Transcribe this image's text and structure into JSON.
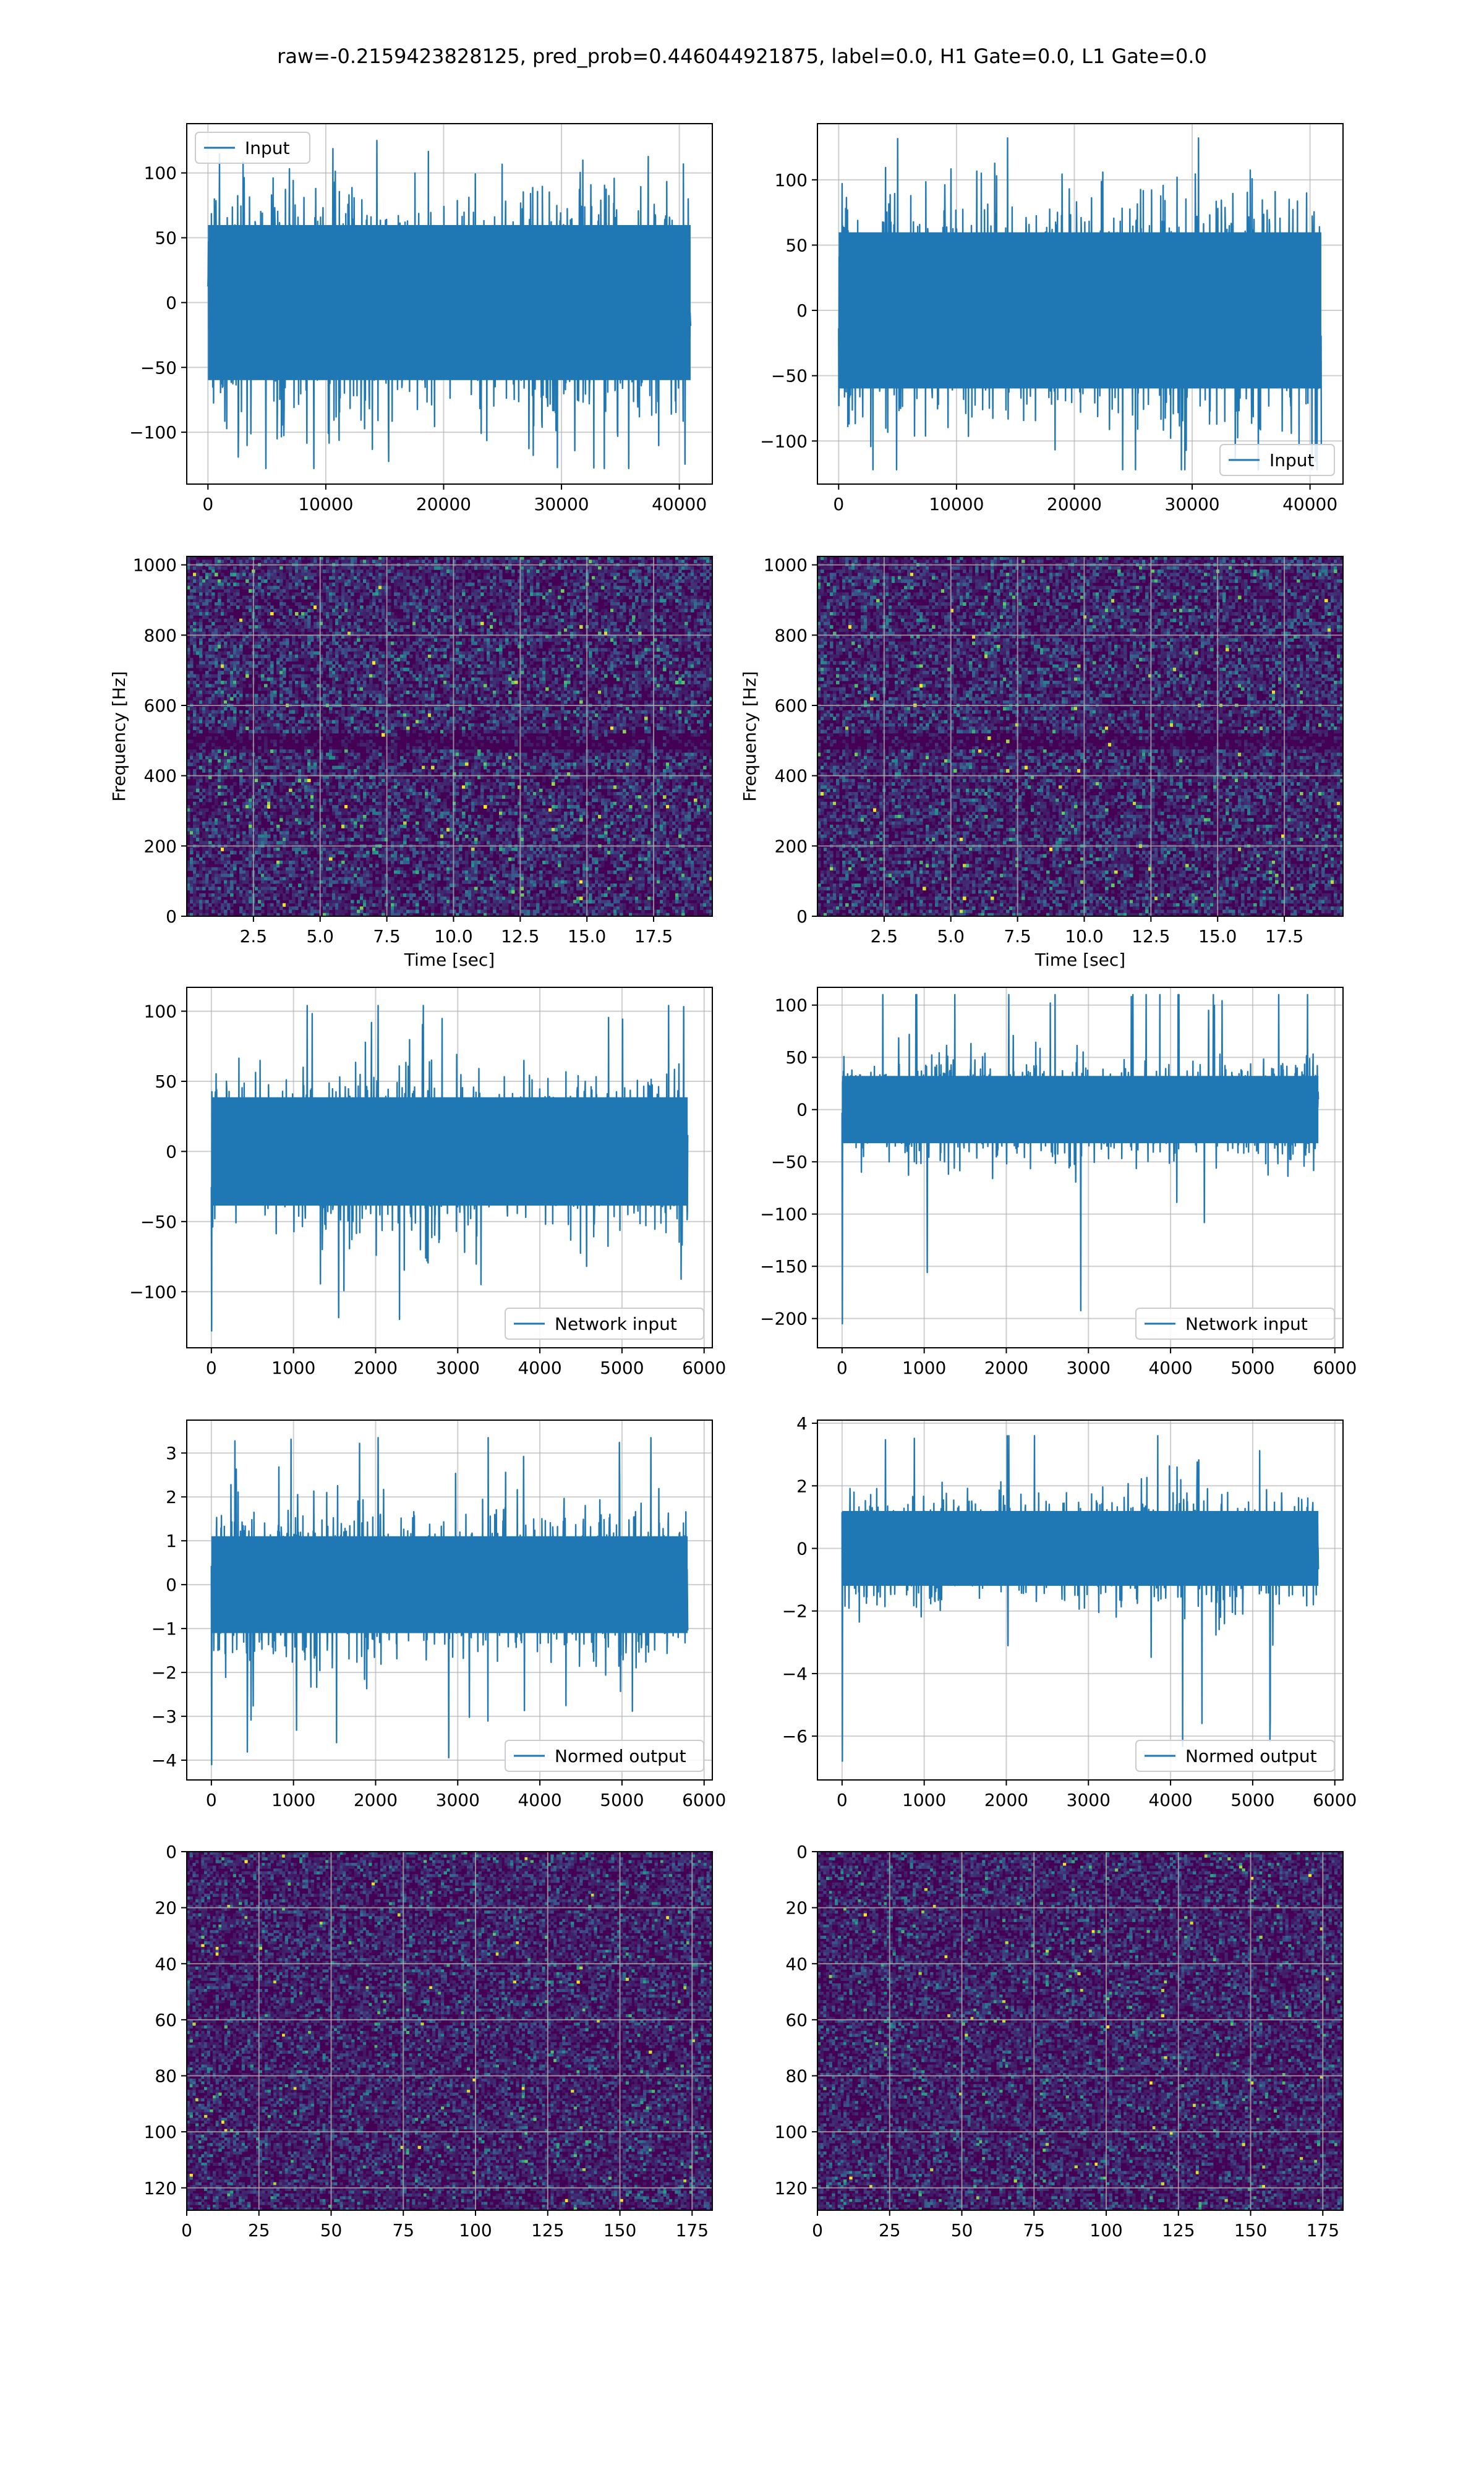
{
  "suptitle": "raw=-0.2159423828125, pred_prob=0.446044921875, label=0.0, H1 Gate=0.0, L1 Gate=0.0",
  "colors": {
    "line": "#1f77b4",
    "grid": "#b0b0b0",
    "viridis_dark": "#440154",
    "viridis_mid": "#21918c",
    "viridis_bright": "#fde725"
  },
  "chart_data": [
    {
      "id": "h1-input",
      "type": "line",
      "x": [
        0,
        40960
      ],
      "xlim": [
        -1800,
        42800
      ],
      "ylim": [
        -140,
        138
      ],
      "xticks": [
        0,
        10000,
        20000,
        30000,
        40000
      ],
      "yticks": [
        -100,
        -50,
        0,
        50,
        100
      ],
      "series": [
        {
          "name": "Input",
          "amplitude_core": 65,
          "peak_max": 125,
          "peak_min": -128
        }
      ],
      "legend": "upper left",
      "grid": true
    },
    {
      "id": "l1-input",
      "type": "line",
      "x": [
        0,
        40960
      ],
      "xlim": [
        -1800,
        42800
      ],
      "ylim": [
        -133,
        143
      ],
      "xticks": [
        0,
        10000,
        20000,
        30000,
        40000
      ],
      "yticks": [
        -100,
        -50,
        0,
        50,
        100
      ],
      "series": [
        {
          "name": "Input",
          "amplitude_core": 65,
          "peak_max": 132,
          "peak_min": -122
        }
      ],
      "legend": "lower right",
      "grid": true
    },
    {
      "id": "h1-spectrogram",
      "type": "heatmap",
      "xlim": [
        0,
        19.7
      ],
      "ylim": [
        0,
        1024
      ],
      "xticks": [
        2.5,
        5.0,
        7.5,
        10.0,
        12.5,
        15.0,
        17.5
      ],
      "yticks": [
        0,
        200,
        400,
        600,
        800,
        1000
      ],
      "xlabel": "Time [sec]",
      "ylabel": "Frequency [Hz]",
      "colormap": "viridis",
      "dark_band_hz": [
        475,
        520
      ],
      "grid": true
    },
    {
      "id": "l1-spectrogram",
      "type": "heatmap",
      "xlim": [
        0,
        19.7
      ],
      "ylim": [
        0,
        1024
      ],
      "xticks": [
        2.5,
        5.0,
        7.5,
        10.0,
        12.5,
        15.0,
        17.5
      ],
      "yticks": [
        0,
        200,
        400,
        600,
        800,
        1000
      ],
      "xlabel": "Time [sec]",
      "ylabel": "Frequency [Hz]",
      "colormap": "viridis",
      "dark_band_hz": [
        475,
        520
      ],
      "grid": true
    },
    {
      "id": "h1-network-input",
      "type": "line",
      "x": [
        0,
        5800
      ],
      "xlim": [
        -300,
        6100
      ],
      "ylim": [
        -140,
        117
      ],
      "xticks": [
        0,
        1000,
        2000,
        3000,
        4000,
        5000,
        6000
      ],
      "yticks": [
        -100,
        -50,
        0,
        50,
        100
      ],
      "series": [
        {
          "name": "Network input",
          "amplitude_core": 42,
          "peak_max": 104,
          "peak_min": -128
        }
      ],
      "legend": "lower right",
      "grid": true
    },
    {
      "id": "l1-network-input",
      "type": "line",
      "x": [
        0,
        5800
      ],
      "xlim": [
        -300,
        6100
      ],
      "ylim": [
        -228,
        117
      ],
      "xticks": [
        0,
        1000,
        2000,
        3000,
        4000,
        5000,
        6000
      ],
      "yticks": [
        -200,
        -150,
        -100,
        -50,
        0,
        50,
        100
      ],
      "series": [
        {
          "name": "Network input",
          "amplitude_core": 35,
          "peak_max": 110,
          "peak_min": -205
        }
      ],
      "legend": "lower right",
      "grid": true
    },
    {
      "id": "h1-normed-output",
      "type": "line",
      "x": [
        0,
        5800
      ],
      "xlim": [
        -300,
        6100
      ],
      "ylim": [
        -4.45,
        3.75
      ],
      "xticks": [
        0,
        1000,
        2000,
        3000,
        4000,
        5000,
        6000
      ],
      "yticks": [
        -4,
        -3,
        -2,
        -1,
        0,
        1,
        2,
        3
      ],
      "series": [
        {
          "name": "Normed output",
          "amplitude_core": 1.2,
          "peak_max": 3.35,
          "peak_min": -4.1
        }
      ],
      "legend": "lower right",
      "grid": true
    },
    {
      "id": "l1-normed-output",
      "type": "line",
      "x": [
        0,
        5800
      ],
      "xlim": [
        -300,
        6100
      ],
      "ylim": [
        -7.4,
        4.1
      ],
      "xticks": [
        0,
        1000,
        2000,
        3000,
        4000,
        5000,
        6000
      ],
      "yticks": [
        -6,
        -4,
        -2,
        0,
        2,
        4
      ],
      "series": [
        {
          "name": "Normed output",
          "amplitude_core": 1.3,
          "peak_max": 3.6,
          "peak_min": -6.8
        }
      ],
      "legend": "lower right",
      "grid": true
    },
    {
      "id": "h1-network-image",
      "type": "heatmap",
      "xlim": [
        0,
        182
      ],
      "ylim": [
        128,
        0
      ],
      "xticks": [
        0,
        25,
        50,
        75,
        100,
        125,
        150,
        175
      ],
      "yticks": [
        0,
        20,
        40,
        60,
        80,
        100,
        120
      ],
      "colormap": "viridis",
      "grid": true
    },
    {
      "id": "l1-network-image",
      "type": "heatmap",
      "xlim": [
        0,
        182
      ],
      "ylim": [
        128,
        0
      ],
      "xticks": [
        0,
        25,
        50,
        75,
        100,
        125,
        150,
        175
      ],
      "yticks": [
        0,
        20,
        40,
        60,
        80,
        100,
        120
      ],
      "colormap": "viridis",
      "grid": true
    }
  ]
}
